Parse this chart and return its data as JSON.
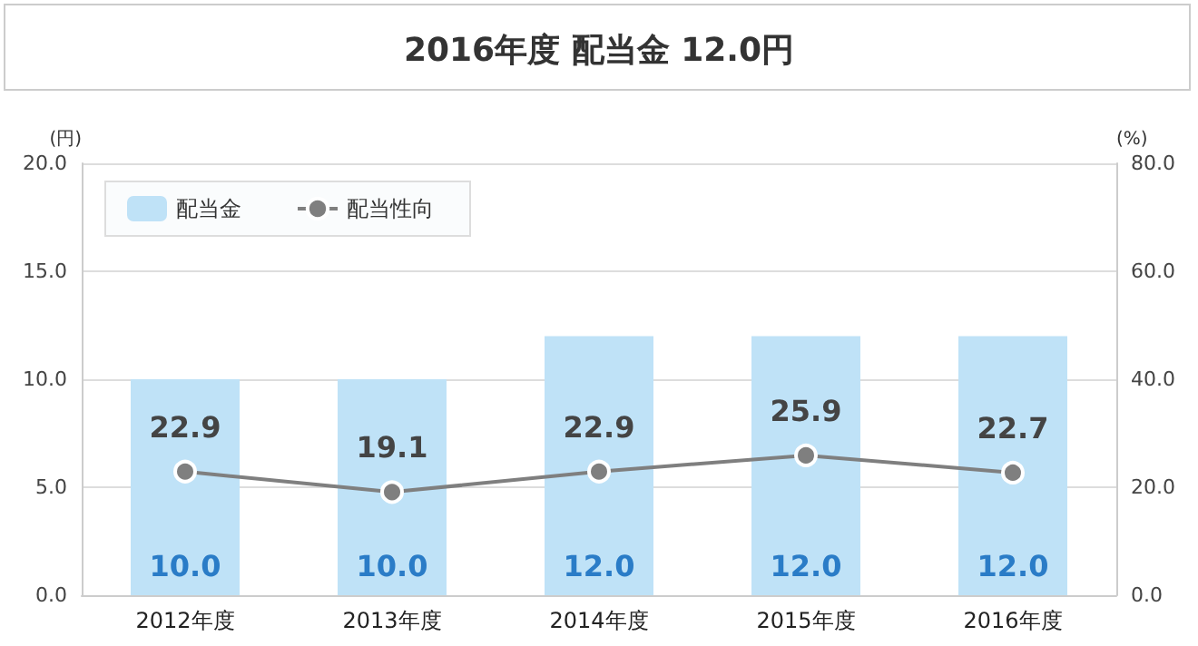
{
  "chart_data": {
    "type": "bar",
    "title": "2016年度 配当金 12.0円",
    "ylabel": "(円)",
    "y2label": "(%)",
    "categories": [
      "2012年度",
      "2013年度",
      "2014年度",
      "2015年度",
      "2016年度"
    ],
    "series": [
      {
        "name": "配当金",
        "color": "#bfe2f7",
        "values": [
          10.0,
          10.0,
          12.0,
          12.0,
          12.0
        ],
        "value_labels": [
          "10.0",
          "10.0",
          "12.0",
          "12.0",
          "12.0"
        ]
      },
      {
        "name": "配当性向",
        "type": "line",
        "axis": "y2",
        "color": "#7f7f7f",
        "marker": "circle",
        "values": [
          22.9,
          19.1,
          22.9,
          25.9,
          22.7
        ],
        "value_labels": [
          "22.9",
          "19.1",
          "22.9",
          "25.9",
          "22.7"
        ]
      }
    ],
    "ylim": [
      0,
      20
    ],
    "yticks": [
      {
        "value": 0,
        "label": "0.0"
      },
      {
        "value": 5,
        "label": "5.0"
      },
      {
        "value": 10,
        "label": "10.0"
      },
      {
        "value": 15,
        "label": "15.0"
      },
      {
        "value": 20,
        "label": "20.0"
      }
    ],
    "y2lim": [
      0,
      80
    ],
    "y2ticks": [
      {
        "value": 0,
        "label": "0.0"
      },
      {
        "value": 20,
        "label": "20.0"
      },
      {
        "value": 40,
        "label": "40.0"
      },
      {
        "value": 60,
        "label": "60.0"
      },
      {
        "value": 80,
        "label": "80.0"
      }
    ],
    "grid": "y",
    "legend": "top left"
  }
}
